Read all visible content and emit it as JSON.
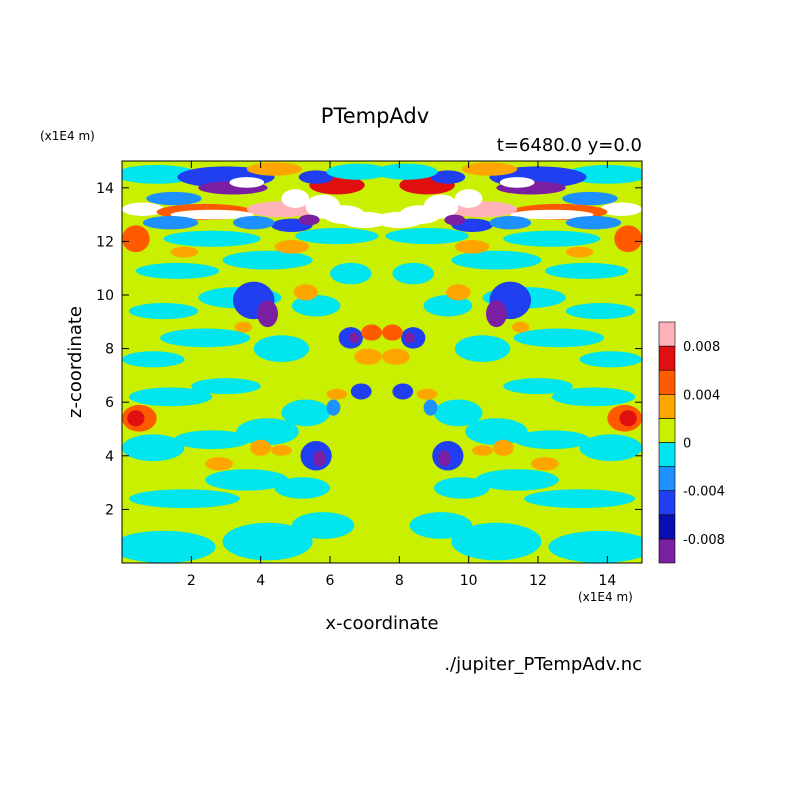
{
  "chart_data": {
    "type": "heatmap",
    "title": "PTempAdv",
    "subtitle": "t=6480.0 y=0.0",
    "xlabel": "x-coordinate",
    "ylabel": "z-coordinate",
    "x_unit_label": "(x1E4 m)",
    "y_unit_label": "(x1E4 m)",
    "source_label": "./jupiter_PTempAdv.nc",
    "xlim": [
      0,
      15
    ],
    "ylim": [
      0,
      15
    ],
    "xticks": [
      2,
      4,
      6,
      8,
      10,
      12,
      14
    ],
    "yticks": [
      2,
      4,
      6,
      8,
      10,
      12,
      14
    ],
    "colorbar": {
      "levels": [
        -0.01,
        -0.008,
        -0.006,
        -0.004,
        -0.002,
        0,
        0.002,
        0.004,
        0.006,
        0.008,
        0.01
      ],
      "colors": [
        "#7b1fa2",
        "#0a0fb4",
        "#1f3ff0",
        "#1e90ff",
        "#00e5ee",
        "#c8f000",
        "#ffa500",
        "#ff5a00",
        "#e01010",
        "#ffb3b8"
      ],
      "tick_labels": [
        "0.008",
        "0.004",
        "0",
        "-0.004",
        "-0.008"
      ],
      "tick_values": [
        0.008,
        0.004,
        0,
        -0.004,
        -0.008
      ],
      "position": "right"
    },
    "field_description_levels": {
      "background_value": 0.001,
      "cyan_value": -0.001
    }
  }
}
